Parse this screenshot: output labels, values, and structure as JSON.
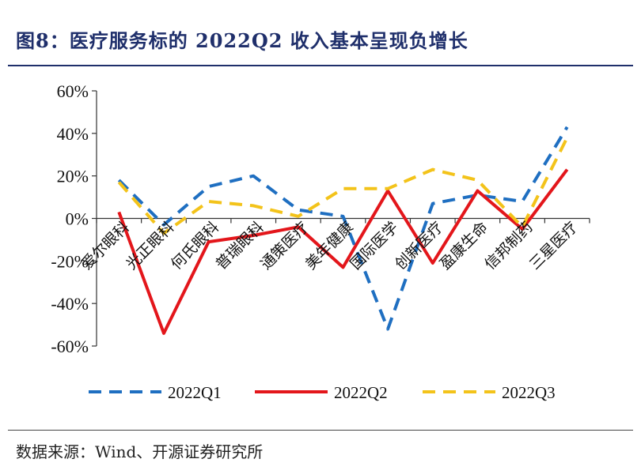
{
  "header": {
    "title": "图8：医疗服务标的 2022Q2 收入基本呈现负增长"
  },
  "footer": {
    "source": "数据来源：Wind、开源证券研究所"
  },
  "chart_data": {
    "type": "line",
    "title": "图8：医疗服务标的 2022Q2 收入基本呈现负增长",
    "xlabel": "",
    "ylabel": "",
    "ylim": [
      -60,
      60
    ],
    "yticks": [
      -60,
      -40,
      -20,
      0,
      20,
      40,
      60
    ],
    "ytick_labels": [
      "-60%",
      "-40%",
      "-20%",
      "0%",
      "20%",
      "40%",
      "60%"
    ],
    "categories": [
      "爱尔眼科",
      "光正眼科",
      "何氏眼科",
      "普瑞眼科",
      "通策医疗",
      "美年健康",
      "国际医学",
      "创新医疗",
      "盈康生命",
      "信邦制药",
      "三星医疗"
    ],
    "series": [
      {
        "name": "2022Q1",
        "color": "#1f6fc1",
        "dash": "dashed",
        "values": [
          18,
          -3,
          15,
          20,
          4,
          1,
          -52,
          7,
          11,
          8,
          43
        ]
      },
      {
        "name": "2022Q2",
        "color": "#e3161b",
        "dash": "solid",
        "values": [
          3,
          -54,
          -11,
          -8,
          -4,
          -23,
          13,
          -21,
          13,
          -5,
          23
        ]
      },
      {
        "name": "2022Q3",
        "color": "#f3c31a",
        "dash": "dashed",
        "values": [
          17,
          -7,
          8,
          6,
          1,
          14,
          14,
          23,
          18,
          -4,
          38
        ]
      }
    ],
    "grid": false,
    "legend": "bottom"
  }
}
